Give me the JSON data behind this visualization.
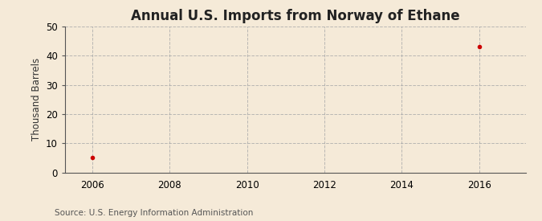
{
  "title": "Annual U.S. Imports from Norway of Ethane",
  "ylabel": "Thousand Barrels",
  "source": "Source: U.S. Energy Information Administration",
  "background_color": "#f5ead8",
  "plot_background_color": "#f5ead8",
  "data_points": [
    {
      "year": 2006,
      "value": 5
    },
    {
      "year": 2016,
      "value": 43
    }
  ],
  "marker_color": "#cc0000",
  "marker_size": 4,
  "xlim": [
    2005.3,
    2017.2
  ],
  "ylim": [
    0,
    50
  ],
  "xticks": [
    2006,
    2008,
    2010,
    2012,
    2014,
    2016
  ],
  "yticks": [
    0,
    10,
    20,
    30,
    40,
    50
  ],
  "grid_color": "#aaaaaa",
  "grid_style": "--",
  "grid_alpha": 0.8,
  "title_fontsize": 12,
  "label_fontsize": 8.5,
  "tick_fontsize": 8.5,
  "source_fontsize": 7.5
}
